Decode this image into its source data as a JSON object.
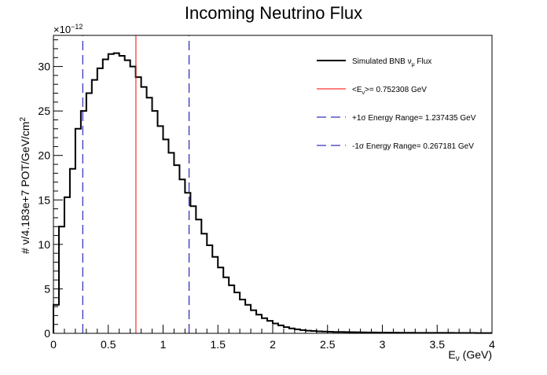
{
  "chart_data": {
    "type": "histogram",
    "title": "Incoming Neutrino Flux",
    "xlabel": "Eν (GeV)",
    "ylabel": "# ν/4.183e+7 POT/GeV/cm²",
    "y_multiplier": "×10⁻¹²",
    "xlim": [
      0,
      4
    ],
    "ylim": [
      0,
      33.5
    ],
    "x_ticks": [
      "0",
      "0.5",
      "1",
      "1.5",
      "2",
      "2.5",
      "3",
      "3.5",
      "4"
    ],
    "y_ticks": [
      "0",
      "5",
      "10",
      "15",
      "20",
      "25",
      "30"
    ],
    "bin_width": 0.05,
    "series": [
      {
        "name": "Simulated BNB νμ Flux",
        "color": "#000000",
        "values": [
          3.2,
          12,
          15.3,
          18.5,
          23,
          25,
          27,
          28.5,
          29.8,
          30.8,
          31.4,
          31.5,
          31.2,
          30.7,
          30,
          28.8,
          27.7,
          26.5,
          25,
          23.3,
          21.8,
          20.3,
          18.9,
          17.3,
          15.8,
          14.3,
          12.8,
          11.2,
          9.9,
          8.6,
          7.4,
          6.3,
          5.4,
          4.6,
          3.8,
          3.2,
          2.6,
          2.1,
          1.7,
          1.4,
          1.1,
          0.9,
          0.7,
          0.55,
          0.45,
          0.37,
          0.3,
          0.26,
          0.22,
          0.2,
          0.18,
          0.16,
          0.15,
          0.14,
          0.13,
          0.12,
          0.11,
          0.1,
          0.1,
          0.09,
          0.09,
          0.08,
          0.08,
          0.07,
          0.07,
          0.07,
          0.06,
          0.06,
          0.06,
          0.05,
          0.05,
          0.05,
          0.05,
          0.04,
          0.04,
          0.04,
          0.04,
          0.03,
          0.03,
          0.03
        ]
      }
    ],
    "vlines": [
      {
        "name": "<Eν>= 0.752308 GeV",
        "x": 0.752308,
        "color": "#ff0000",
        "style": "solid"
      },
      {
        "name": "+1σ Energy Range= 1.237435 GeV",
        "x": 1.237435,
        "color": "#0000aa",
        "style": "dashed"
      },
      {
        "name": "-1σ Energy Range= 0.267181 GeV",
        "x": 0.267181,
        "color": "#0000aa",
        "style": "dashed"
      }
    ],
    "legend_position": "top-right",
    "legend": [
      {
        "label": "Simulated BNB νμ Flux",
        "color": "#000000",
        "style": "solid"
      },
      {
        "label": "<Eν>= 0.752308 GeV",
        "color": "#ff0000",
        "style": "solid"
      },
      {
        "label": "+1σ Energy Range= 1.237435 GeV",
        "color": "#0000aa",
        "style": "dashed"
      },
      {
        "label": "-1σ Energy Range= 0.267181 GeV",
        "color": "#0000aa",
        "style": "dashed"
      }
    ]
  }
}
